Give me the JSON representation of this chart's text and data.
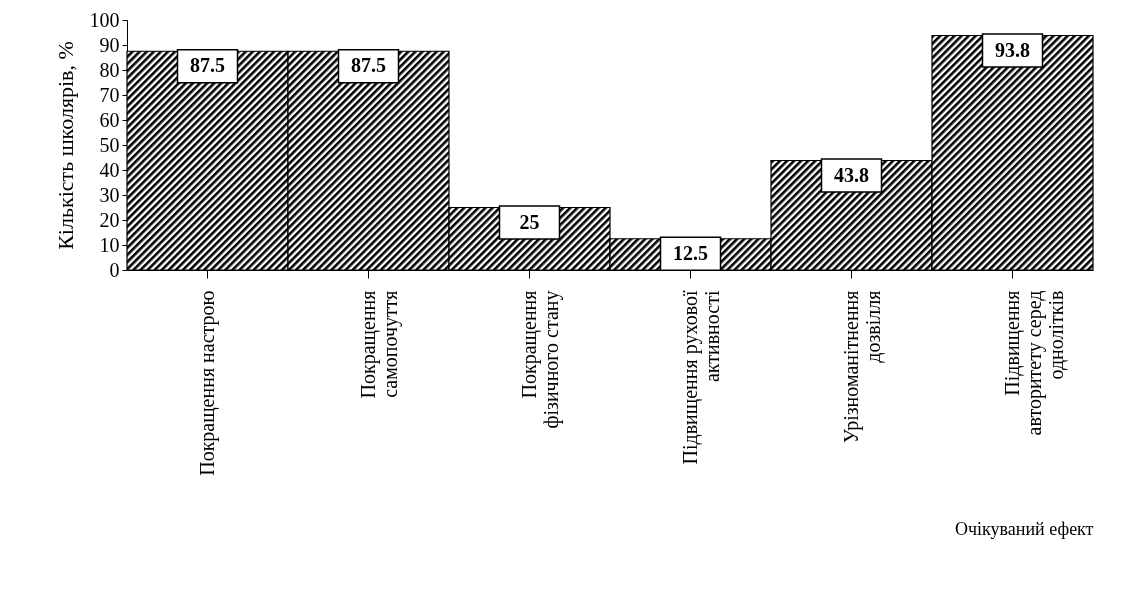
{
  "chart_data": {
    "type": "bar",
    "xlabel": "Очікуваний ефект",
    "ylabel": "Кількість школярів, %",
    "categories": [
      "Покращення настрою",
      "Покращення самопочуття",
      "Покращення фізичного стану",
      "Підвищення рухової активності",
      "Урізноманітнення дозвілля",
      "Підвищення авторитету серед однолітків"
    ],
    "values": [
      87.5,
      87.5,
      25,
      12.5,
      43.8,
      93.8
    ],
    "color": "#000000",
    "ylim": [
      0,
      100
    ],
    "yticks": [
      0,
      10,
      20,
      30,
      40,
      50,
      60,
      70,
      80,
      90,
      100
    ],
    "grid": false,
    "data_labels": true
  }
}
